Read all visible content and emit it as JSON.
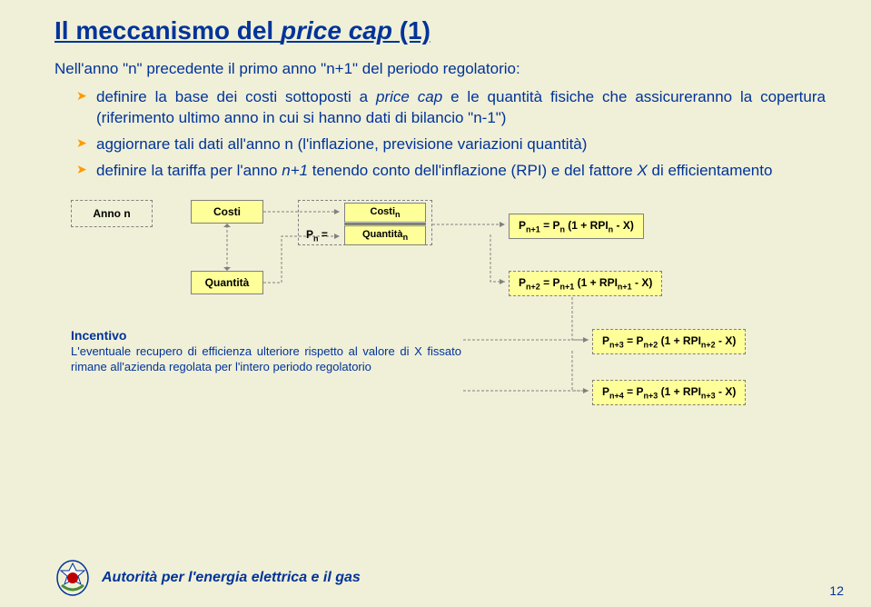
{
  "title_prefix": "Il meccanismo del ",
  "title_italic": "price cap",
  "title_suffix": " (1)",
  "subtitle": "Nell'anno \"n\" precedente il primo anno \"n+1\" del periodo regolatorio:",
  "bullet1_prefix": "definire la base dei costi sottoposti a ",
  "bullet1_italic": "price cap",
  "bullet1_suffix": " e le quantità fisiche che assicureranno la copertura (riferimento ultimo anno in cui si hanno dati di bilancio \"n-1\")",
  "bullet2": "aggiornare tali dati all'anno n (l'inflazione, previsione variazioni quantità)",
  "bullet3_prefix": "definire la tariffa per l'anno ",
  "bullet3_italic1": "n+1",
  "bullet3_mid": " tenendo conto dell'inflazione (RPI) e del fattore ",
  "bullet3_italic2": "X",
  "bullet3_suffix": " di efficientamento",
  "anno_n": "Anno n",
  "costi": "Costi",
  "quantita": "Quantità",
  "pn_eq": "P",
  "pn_eq_sub": "n",
  "pn_eq_after": " =",
  "frac_top": "Costi",
  "frac_top_sub": "n",
  "frac_bot": "Quantità",
  "frac_bot_sub": "n",
  "formula1": "P<sub>n+1</sub> = P<sub>n</sub> (1 + RPI<sub>n</sub> - X)",
  "formula2": "P<sub>n+2</sub> = P<sub>n+1</sub> (1 + RPI<sub>n+1</sub> - X)",
  "formula3": "P<sub>n+3</sub> = P<sub>n+2</sub> (1 + RPI<sub>n+2</sub> - X)",
  "formula4": "P<sub>n+4</sub> = P<sub>n+3</sub> (1 + RPI<sub>n+3</sub> - X)",
  "incentivo_title": "Incentivo",
  "incentivo_body": "L'eventuale recupero di efficienza ulteriore rispetto al valore di X fissato rimane all'azienda regolata per l'intero periodo regolatorio",
  "footer": "Autorità per l'energia elettrica e il gas",
  "page": "12",
  "colors": {
    "bg": "#f0f0d8",
    "primary": "#003399",
    "accent": "#ff9900",
    "box_fill": "#ffff99",
    "box_border": "#808080"
  }
}
